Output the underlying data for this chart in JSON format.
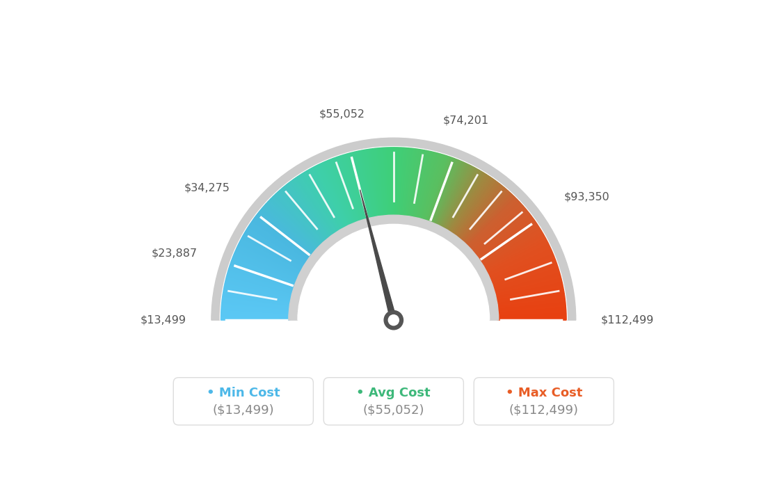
{
  "min_value": 13499,
  "max_value": 112499,
  "avg_value": 55052,
  "labels": [
    "$13,499",
    "$23,887",
    "$34,275",
    "$55,052",
    "$74,201",
    "$93,350",
    "$112,499"
  ],
  "label_values": [
    13499,
    23887,
    34275,
    55052,
    74201,
    93350,
    112499
  ],
  "color_stops": [
    [
      0.0,
      "#5bc8f5"
    ],
    [
      0.2,
      "#4ab8e0"
    ],
    [
      0.35,
      "#3ecfaa"
    ],
    [
      0.5,
      "#3ecf78"
    ],
    [
      0.6,
      "#5abf60"
    ],
    [
      0.68,
      "#a08840"
    ],
    [
      0.75,
      "#cc6030"
    ],
    [
      0.85,
      "#e05020"
    ],
    [
      1.0,
      "#e84010"
    ]
  ],
  "legend": [
    {
      "label": "Min Cost",
      "value": "($13,499)",
      "color": "#4db8e8"
    },
    {
      "label": "Avg Cost",
      "value": "($55,052)",
      "color": "#3db87a"
    },
    {
      "label": "Max Cost",
      "value": "($112,499)",
      "color": "#e85d26"
    }
  ],
  "background_color": "#ffffff",
  "needle_color": "#555555",
  "text_color": "#555555",
  "outer_ring_color": "#cccccc",
  "inner_ring_color": "#d0d0d0"
}
